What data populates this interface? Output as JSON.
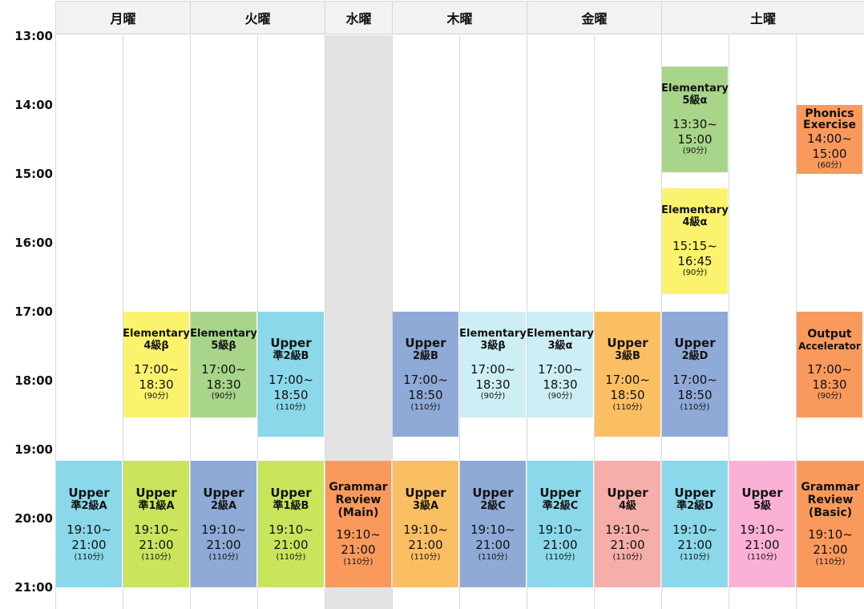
{
  "days": [
    "月曜",
    "火曜",
    "水曜",
    "木曜",
    "金曜",
    "土曜"
  ],
  "times": [
    "13:00",
    "14:00",
    "15:00",
    "16:00",
    "17:00",
    "18:00",
    "19:00",
    "20:00",
    "21:00"
  ],
  "colors": {
    "yellow": "#fbf36d",
    "lightgreen": "#a8d58a",
    "lime": "#c8e55c",
    "skyblue": "#8ad8ea",
    "lightblue": "#cdeef4",
    "steel": "#8faad6",
    "orange": "#fbbf63",
    "coral": "#f99a5c",
    "salmon": "#f6aeaa",
    "pink": "#fbb1d6",
    "closed": "#e3e3e3"
  },
  "blocks": [
    {
      "id": "mon1-eve",
      "title": "Elementary",
      "level": "4級β",
      "start": "17:00~",
      "end": "18:30",
      "dur": "(90分)",
      "color": "yellow"
    },
    {
      "id": "tue0-eve",
      "title": "Elementary",
      "level": "5級β",
      "start": "17:00~",
      "end": "18:30",
      "dur": "(90分)",
      "color": "lightgreen"
    },
    {
      "id": "tue1-eve",
      "title": "Upper",
      "level": "準2級B",
      "start": "17:00~",
      "end": "18:50",
      "dur": "(110分)",
      "color": "skyblue"
    },
    {
      "id": "thu0-eve",
      "title": "Upper",
      "level": "2級B",
      "start": "17:00~",
      "end": "18:50",
      "dur": "(110分)",
      "color": "steel"
    },
    {
      "id": "thu1-eve",
      "title": "Elementary",
      "level": "3級β",
      "start": "17:00~",
      "end": "18:30",
      "dur": "(90分)",
      "color": "lightblue"
    },
    {
      "id": "fri0-eve",
      "title": "Elementary",
      "level": "3級α",
      "start": "17:00~",
      "end": "18:30",
      "dur": "(90分)",
      "color": "lightblue"
    },
    {
      "id": "fri1-eve",
      "title": "Upper",
      "level": "3級B",
      "start": "17:00~",
      "end": "18:50",
      "dur": "(110分)",
      "color": "orange"
    },
    {
      "id": "sat0-a",
      "title": "Elementary",
      "level": "5級α",
      "start": "13:30~",
      "end": "15:00",
      "dur": "(90分)",
      "color": "lightgreen"
    },
    {
      "id": "sat0-b",
      "title": "Elementary",
      "level": "4級α",
      "start": "15:15~",
      "end": "16:45",
      "dur": "(90分)",
      "color": "yellow"
    },
    {
      "id": "sat0-c",
      "title": "Upper",
      "level": "2級D",
      "start": "17:00~",
      "end": "18:50",
      "dur": "(110分)",
      "color": "steel"
    },
    {
      "id": "sat2-a",
      "title": "Phonics Exercise",
      "level": "",
      "start": "14:00~",
      "end": "15:00",
      "dur": "(60分)",
      "color": "coral"
    },
    {
      "id": "sat2-b",
      "title": "Output",
      "level": "Accelerator",
      "start": "17:00~",
      "end": "18:30",
      "dur": "(90分)",
      "color": "coral"
    },
    {
      "id": "mon0-night",
      "title": "Upper",
      "level": "準2級A",
      "start": "19:10~",
      "end": "21:00",
      "dur": "(110分)",
      "color": "skyblue"
    },
    {
      "id": "mon1-night",
      "title": "Upper",
      "level": "準1級A",
      "start": "19:10~",
      "end": "21:00",
      "dur": "(110分)",
      "color": "lime"
    },
    {
      "id": "tue0-night",
      "title": "Upper",
      "level": "2級A",
      "start": "19:10~",
      "end": "21:00",
      "dur": "(110分)",
      "color": "steel"
    },
    {
      "id": "tue1-night",
      "title": "Upper",
      "level": "準1級B",
      "start": "19:10~",
      "end": "21:00",
      "dur": "(110分)",
      "color": "lime"
    },
    {
      "id": "wed-night",
      "title": "Grammar Review (Main)",
      "level": "",
      "start": "19:10~",
      "end": "21:00",
      "dur": "(110分)",
      "color": "coral"
    },
    {
      "id": "thu0-night",
      "title": "Upper",
      "level": "3級A",
      "start": "19:10~",
      "end": "21:00",
      "dur": "(110分)",
      "color": "orange"
    },
    {
      "id": "thu1-night",
      "title": "Upper",
      "level": "2級C",
      "start": "19:10~",
      "end": "21:00",
      "dur": "(110分)",
      "color": "steel"
    },
    {
      "id": "fri0-night",
      "title": "Upper",
      "level": "準2級C",
      "start": "19:10~",
      "end": "21:00",
      "dur": "(110分)",
      "color": "skyblue"
    },
    {
      "id": "fri1-night",
      "title": "Upper",
      "level": "4級",
      "start": "19:10~",
      "end": "21:00",
      "dur": "(110分)",
      "color": "salmon"
    },
    {
      "id": "sat0-night",
      "title": "Upper",
      "level": "準2級D",
      "start": "19:10~",
      "end": "21:00",
      "dur": "(110分)",
      "color": "skyblue"
    },
    {
      "id": "sat1-night",
      "title": "Upper",
      "level": "5級",
      "start": "19:10~",
      "end": "21:00",
      "dur": "(110分)",
      "color": "pink"
    },
    {
      "id": "sat2-night",
      "title": "Grammar Review (Basic)",
      "level": "",
      "start": "19:10~",
      "end": "21:00",
      "dur": "(110分)",
      "color": "coral"
    }
  ]
}
